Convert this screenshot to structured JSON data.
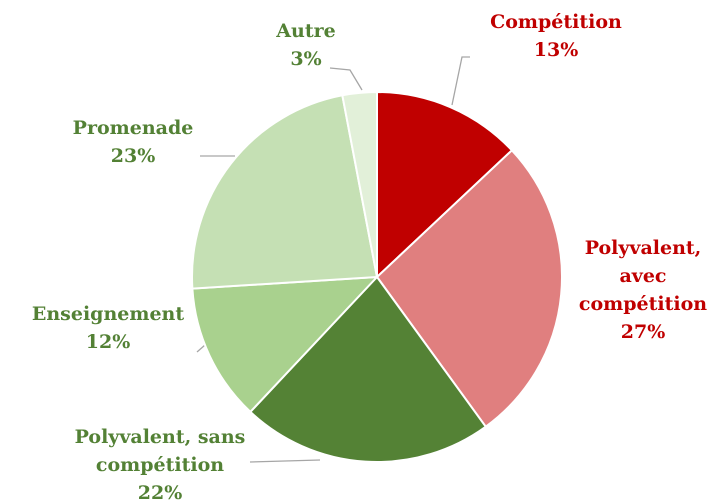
{
  "chart_data": {
    "type": "pie",
    "categories": [
      "Compétition",
      "Polyvalent, avec compétition",
      "Polyvalent, sans compétition",
      "Enseignement",
      "Promenade",
      "Autre"
    ],
    "values": [
      13,
      27,
      22,
      12,
      23,
      3
    ],
    "value_labels": [
      "13%",
      "27%",
      "22%",
      "12%",
      "23%",
      "3%"
    ],
    "colors": [
      "#c00000",
      "#e07f7f",
      "#548235",
      "#a9d18e",
      "#c5e0b4",
      "#e2f0d9"
    ],
    "label_colors": [
      "#c00000",
      "#c00000",
      "#538135",
      "#538135",
      "#538135",
      "#538135"
    ]
  }
}
